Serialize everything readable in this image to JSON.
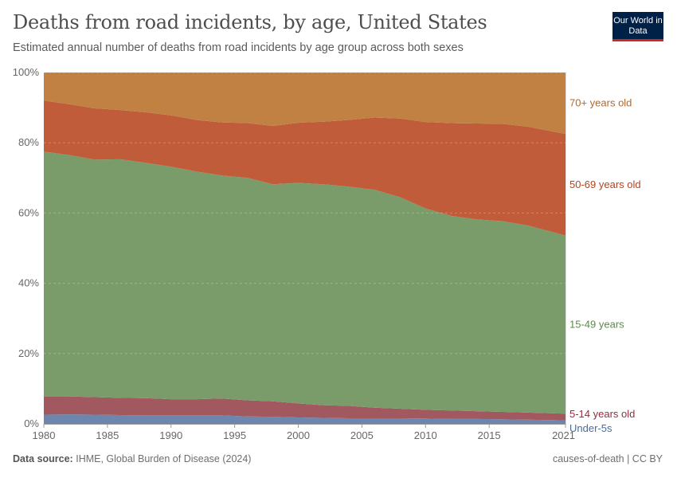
{
  "header": {
    "title": "Deaths from road incidents, by age, United States",
    "subtitle": "Estimated annual number of deaths from road incidents by age group across both sexes",
    "logo_text": "Our World in Data"
  },
  "footer": {
    "source_label": "Data source:",
    "source_text": "IHME, Global Burden of Disease (2024)",
    "right_text": "causes-of-death | CC BY"
  },
  "chart_data": {
    "type": "area",
    "stacked": "100%",
    "x": [
      1980,
      1982,
      1984,
      1986,
      1988,
      1990,
      1992,
      1994,
      1996,
      1998,
      2000,
      2002,
      2004,
      2006,
      2008,
      2010,
      2012,
      2014,
      2016,
      2018,
      2021
    ],
    "xticks": [
      "1980",
      "1985",
      "1990",
      "1995",
      "2000",
      "2005",
      "2010",
      "2015",
      "2021"
    ],
    "xtick_values": [
      1980,
      1985,
      1990,
      1995,
      2000,
      2005,
      2010,
      2015,
      2021
    ],
    "yticks": [
      "0%",
      "20%",
      "40%",
      "60%",
      "80%",
      "100%"
    ],
    "ylim": [
      0,
      100
    ],
    "grid": "horizontal dashed",
    "legend": "right-side inline labels",
    "series": [
      {
        "name": "Under-5s",
        "color": "#6d86ae",
        "label_color": "#4d6a9d",
        "values": [
          2.6,
          2.7,
          2.6,
          2.5,
          2.4,
          2.4,
          2.4,
          2.4,
          2.1,
          2.0,
          1.8,
          1.7,
          1.6,
          1.6,
          1.6,
          1.5,
          1.4,
          1.4,
          1.3,
          1.2,
          1.0
        ]
      },
      {
        "name": "5-14 years old",
        "color": "#a1595f",
        "label_color": "#8f2f40",
        "values": [
          5.2,
          5.1,
          5.0,
          4.9,
          4.9,
          4.6,
          4.6,
          4.8,
          4.6,
          4.4,
          4.0,
          3.6,
          3.5,
          3.0,
          2.7,
          2.5,
          2.4,
          2.2,
          2.1,
          2.0,
          1.9
        ]
      },
      {
        "name": "15-49 years",
        "color": "#7a9b6a",
        "label_color": "#5b8a4b",
        "values": [
          69.7,
          68.7,
          67.6,
          67.9,
          67.0,
          66.2,
          64.8,
          63.5,
          63.3,
          61.8,
          62.8,
          62.9,
          62.4,
          62.0,
          60.2,
          57.3,
          55.4,
          54.6,
          54.3,
          53.3,
          50.7
        ]
      },
      {
        "name": "50-69 years old",
        "color": "#c05c39",
        "label_color": "#b5431f",
        "values": [
          14.5,
          14.5,
          14.6,
          14.0,
          14.4,
          14.6,
          14.7,
          15.1,
          15.6,
          16.6,
          17.1,
          17.8,
          19.0,
          20.6,
          22.4,
          24.6,
          26.4,
          27.3,
          27.7,
          28.1,
          28.9
        ]
      },
      {
        "name": "70+ years old",
        "color": "#c08143",
        "label_color": "#b4692a",
        "values": [
          8.0,
          9.0,
          10.2,
          10.7,
          11.3,
          12.2,
          13.5,
          14.2,
          14.4,
          15.2,
          14.3,
          14.0,
          13.5,
          12.8,
          13.1,
          14.1,
          14.4,
          14.5,
          14.6,
          15.4,
          17.5
        ]
      }
    ]
  }
}
